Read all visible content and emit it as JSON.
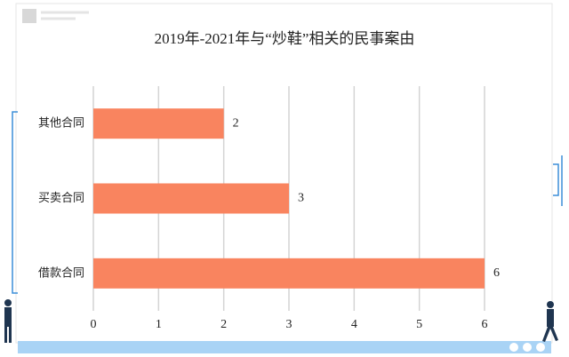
{
  "chart_data": {
    "type": "bar",
    "orientation": "horizontal",
    "title": "2019年-2021年与“炒鞋”相关的民事案由",
    "categories": [
      "其他合同",
      "买卖合同",
      "借款合同"
    ],
    "values": [
      2,
      3,
      6
    ],
    "color": "#f9845f",
    "xlim": [
      0,
      6
    ],
    "xticks": [
      0,
      1,
      2,
      3,
      4,
      5,
      6
    ],
    "grid": true,
    "data_labels": true
  }
}
